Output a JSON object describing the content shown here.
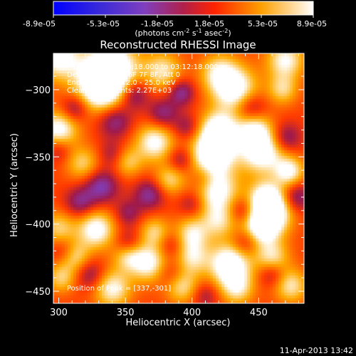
{
  "colorbar": {
    "tick_labels": [
      "-8.9e-05",
      "-5.3e-05",
      "-1.8e-05",
      "1.8e-05",
      "5.3e-05",
      "8.9e-05"
    ],
    "units_main": "(photons cm",
    "units_exp1": "-2",
    "units_mid": " s",
    "units_exp2": "-1",
    "units_tail": " asec",
    "units_exp3": "-2",
    "units_close": ")"
  },
  "chart_data": {
    "type": "heatmap",
    "title": "Reconstructed RHESSI Image",
    "xlabel": "Heliocentric X (arcsec)",
    "ylabel": "Heliocentric Y (arcsec)",
    "xlim": [
      296,
      484
    ],
    "ylim": [
      -459,
      -273
    ],
    "x_ticks": [
      300,
      350,
      400,
      450
    ],
    "y_ticks": [
      -300,
      -350,
      -400,
      -450
    ],
    "colormap": [
      "#0000ff",
      "#5a1ea8",
      "#7f3fbf",
      "#a01a4a",
      "#ff3a00",
      "#ffaa00",
      "#ffffff"
    ],
    "value_range": [
      -8.9e-05,
      8.9e-05
    ],
    "peak": [
      337,
      -301
    ],
    "blobs": [
      {
        "x": 300,
        "y": -276,
        "amp": 0.8,
        "s": 12
      },
      {
        "x": 340,
        "y": -283,
        "amp": 0.9,
        "s": 14
      },
      {
        "x": 332,
        "y": -298,
        "amp": 1.0,
        "s": 13
      },
      {
        "x": 378,
        "y": -286,
        "amp": 0.6,
        "s": 10
      },
      {
        "x": 420,
        "y": -287,
        "amp": 0.55,
        "s": 10
      },
      {
        "x": 432,
        "y": -300,
        "amp": 0.85,
        "s": 12
      },
      {
        "x": 470,
        "y": -278,
        "amp": 0.7,
        "s": 10
      },
      {
        "x": 468,
        "y": -300,
        "amp": 0.5,
        "s": 8
      },
      {
        "x": 300,
        "y": -330,
        "amp": 0.8,
        "s": 10
      },
      {
        "x": 372,
        "y": -339,
        "amp": 0.75,
        "s": 10
      },
      {
        "x": 420,
        "y": -330,
        "amp": 0.85,
        "s": 10
      },
      {
        "x": 446,
        "y": -328,
        "amp": 0.55,
        "s": 9
      },
      {
        "x": 410,
        "y": -351,
        "amp": 0.6,
        "s": 12
      },
      {
        "x": 420,
        "y": -345,
        "amp": 0.55,
        "s": 10
      },
      {
        "x": 452,
        "y": -345,
        "amp": 0.95,
        "s": 12
      },
      {
        "x": 473,
        "y": -361,
        "amp": 0.7,
        "s": 8
      },
      {
        "x": 318,
        "y": -355,
        "amp": 0.5,
        "s": 9
      },
      {
        "x": 352,
        "y": -354,
        "amp": 0.45,
        "s": 8
      },
      {
        "x": 383,
        "y": -367,
        "amp": 0.5,
        "s": 8
      },
      {
        "x": 418,
        "y": -375,
        "amp": 0.8,
        "s": 12
      },
      {
        "x": 460,
        "y": -390,
        "amp": 0.9,
        "s": 11
      },
      {
        "x": 455,
        "y": -380,
        "amp": 0.55,
        "s": 9
      },
      {
        "x": 300,
        "y": -403,
        "amp": 0.5,
        "s": 9
      },
      {
        "x": 328,
        "y": -404,
        "amp": 0.8,
        "s": 10
      },
      {
        "x": 372,
        "y": -406,
        "amp": 0.5,
        "s": 8
      },
      {
        "x": 400,
        "y": -407,
        "amp": 0.6,
        "s": 9
      },
      {
        "x": 420,
        "y": -398,
        "amp": 0.5,
        "s": 9
      },
      {
        "x": 452,
        "y": -402,
        "amp": 0.8,
        "s": 10
      },
      {
        "x": 312,
        "y": -424,
        "amp": 0.55,
        "s": 8
      },
      {
        "x": 352,
        "y": -424,
        "amp": 0.5,
        "s": 8
      },
      {
        "x": 368,
        "y": -429,
        "amp": 0.75,
        "s": 10
      },
      {
        "x": 400,
        "y": -425,
        "amp": 0.55,
        "s": 9
      },
      {
        "x": 428,
        "y": -430,
        "amp": 0.95,
        "s": 11
      },
      {
        "x": 460,
        "y": -425,
        "amp": 0.6,
        "s": 9
      },
      {
        "x": 302,
        "y": -440,
        "amp": 0.5,
        "s": 8
      },
      {
        "x": 340,
        "y": -448,
        "amp": 0.7,
        "s": 10
      },
      {
        "x": 392,
        "y": -446,
        "amp": 0.6,
        "s": 9
      },
      {
        "x": 434,
        "y": -448,
        "amp": 0.55,
        "s": 9
      },
      {
        "x": 474,
        "y": -446,
        "amp": 0.6,
        "s": 9
      },
      {
        "x": 356,
        "y": -303,
        "amp": -0.55,
        "s": 8
      },
      {
        "x": 392,
        "y": -302,
        "amp": -0.5,
        "s": 7
      },
      {
        "x": 444,
        "y": -314,
        "amp": -0.5,
        "s": 8
      },
      {
        "x": 312,
        "y": -314,
        "amp": -0.45,
        "s": 7
      },
      {
        "x": 342,
        "y": -323,
        "amp": -0.5,
        "s": 9
      },
      {
        "x": 378,
        "y": -318,
        "amp": -0.45,
        "s": 8
      },
      {
        "x": 396,
        "y": -328,
        "amp": -0.35,
        "s": 7
      },
      {
        "x": 470,
        "y": -336,
        "amp": -0.5,
        "s": 8
      },
      {
        "x": 300,
        "y": -344,
        "amp": -0.35,
        "s": 7
      },
      {
        "x": 340,
        "y": -348,
        "amp": -0.3,
        "s": 7
      },
      {
        "x": 392,
        "y": -352,
        "amp": -0.45,
        "s": 7
      },
      {
        "x": 332,
        "y": -372,
        "amp": -0.55,
        "s": 9
      },
      {
        "x": 368,
        "y": -378,
        "amp": -0.5,
        "s": 8
      },
      {
        "x": 408,
        "y": -366,
        "amp": -0.4,
        "s": 8
      },
      {
        "x": 478,
        "y": -380,
        "amp": -0.5,
        "s": 8
      },
      {
        "x": 316,
        "y": -384,
        "amp": -0.45,
        "s": 8
      },
      {
        "x": 352,
        "y": -392,
        "amp": -0.35,
        "s": 7
      },
      {
        "x": 400,
        "y": -385,
        "amp": -0.35,
        "s": 7
      },
      {
        "x": 438,
        "y": -390,
        "amp": -0.4,
        "s": 7
      },
      {
        "x": 352,
        "y": -414,
        "amp": -0.35,
        "s": 7
      },
      {
        "x": 304,
        "y": -420,
        "amp": -0.3,
        "s": 7
      },
      {
        "x": 384,
        "y": -416,
        "amp": -0.3,
        "s": 7
      },
      {
        "x": 440,
        "y": -414,
        "amp": -0.35,
        "s": 7
      },
      {
        "x": 324,
        "y": -438,
        "amp": -0.4,
        "s": 8
      },
      {
        "x": 384,
        "y": -437,
        "amp": -0.35,
        "s": 8
      },
      {
        "x": 460,
        "y": -437,
        "amp": -0.4,
        "s": 7
      },
      {
        "x": 410,
        "y": -453,
        "amp": -0.3,
        "s": 7
      }
    ],
    "annotations": [
      "1-Jul-2002 03:06:18.000 to 03:12:18.000",
      "Detectors: 4F 5F 6F 7F 8F, Att 0",
      "Energy Range: 12.0 - 25.0 keV",
      "Clean   total counts: 2.27E+03",
      "Position of Peak = [337,-301]"
    ]
  },
  "footer": {
    "timestamp": "11-Apr-2013 13:42"
  }
}
